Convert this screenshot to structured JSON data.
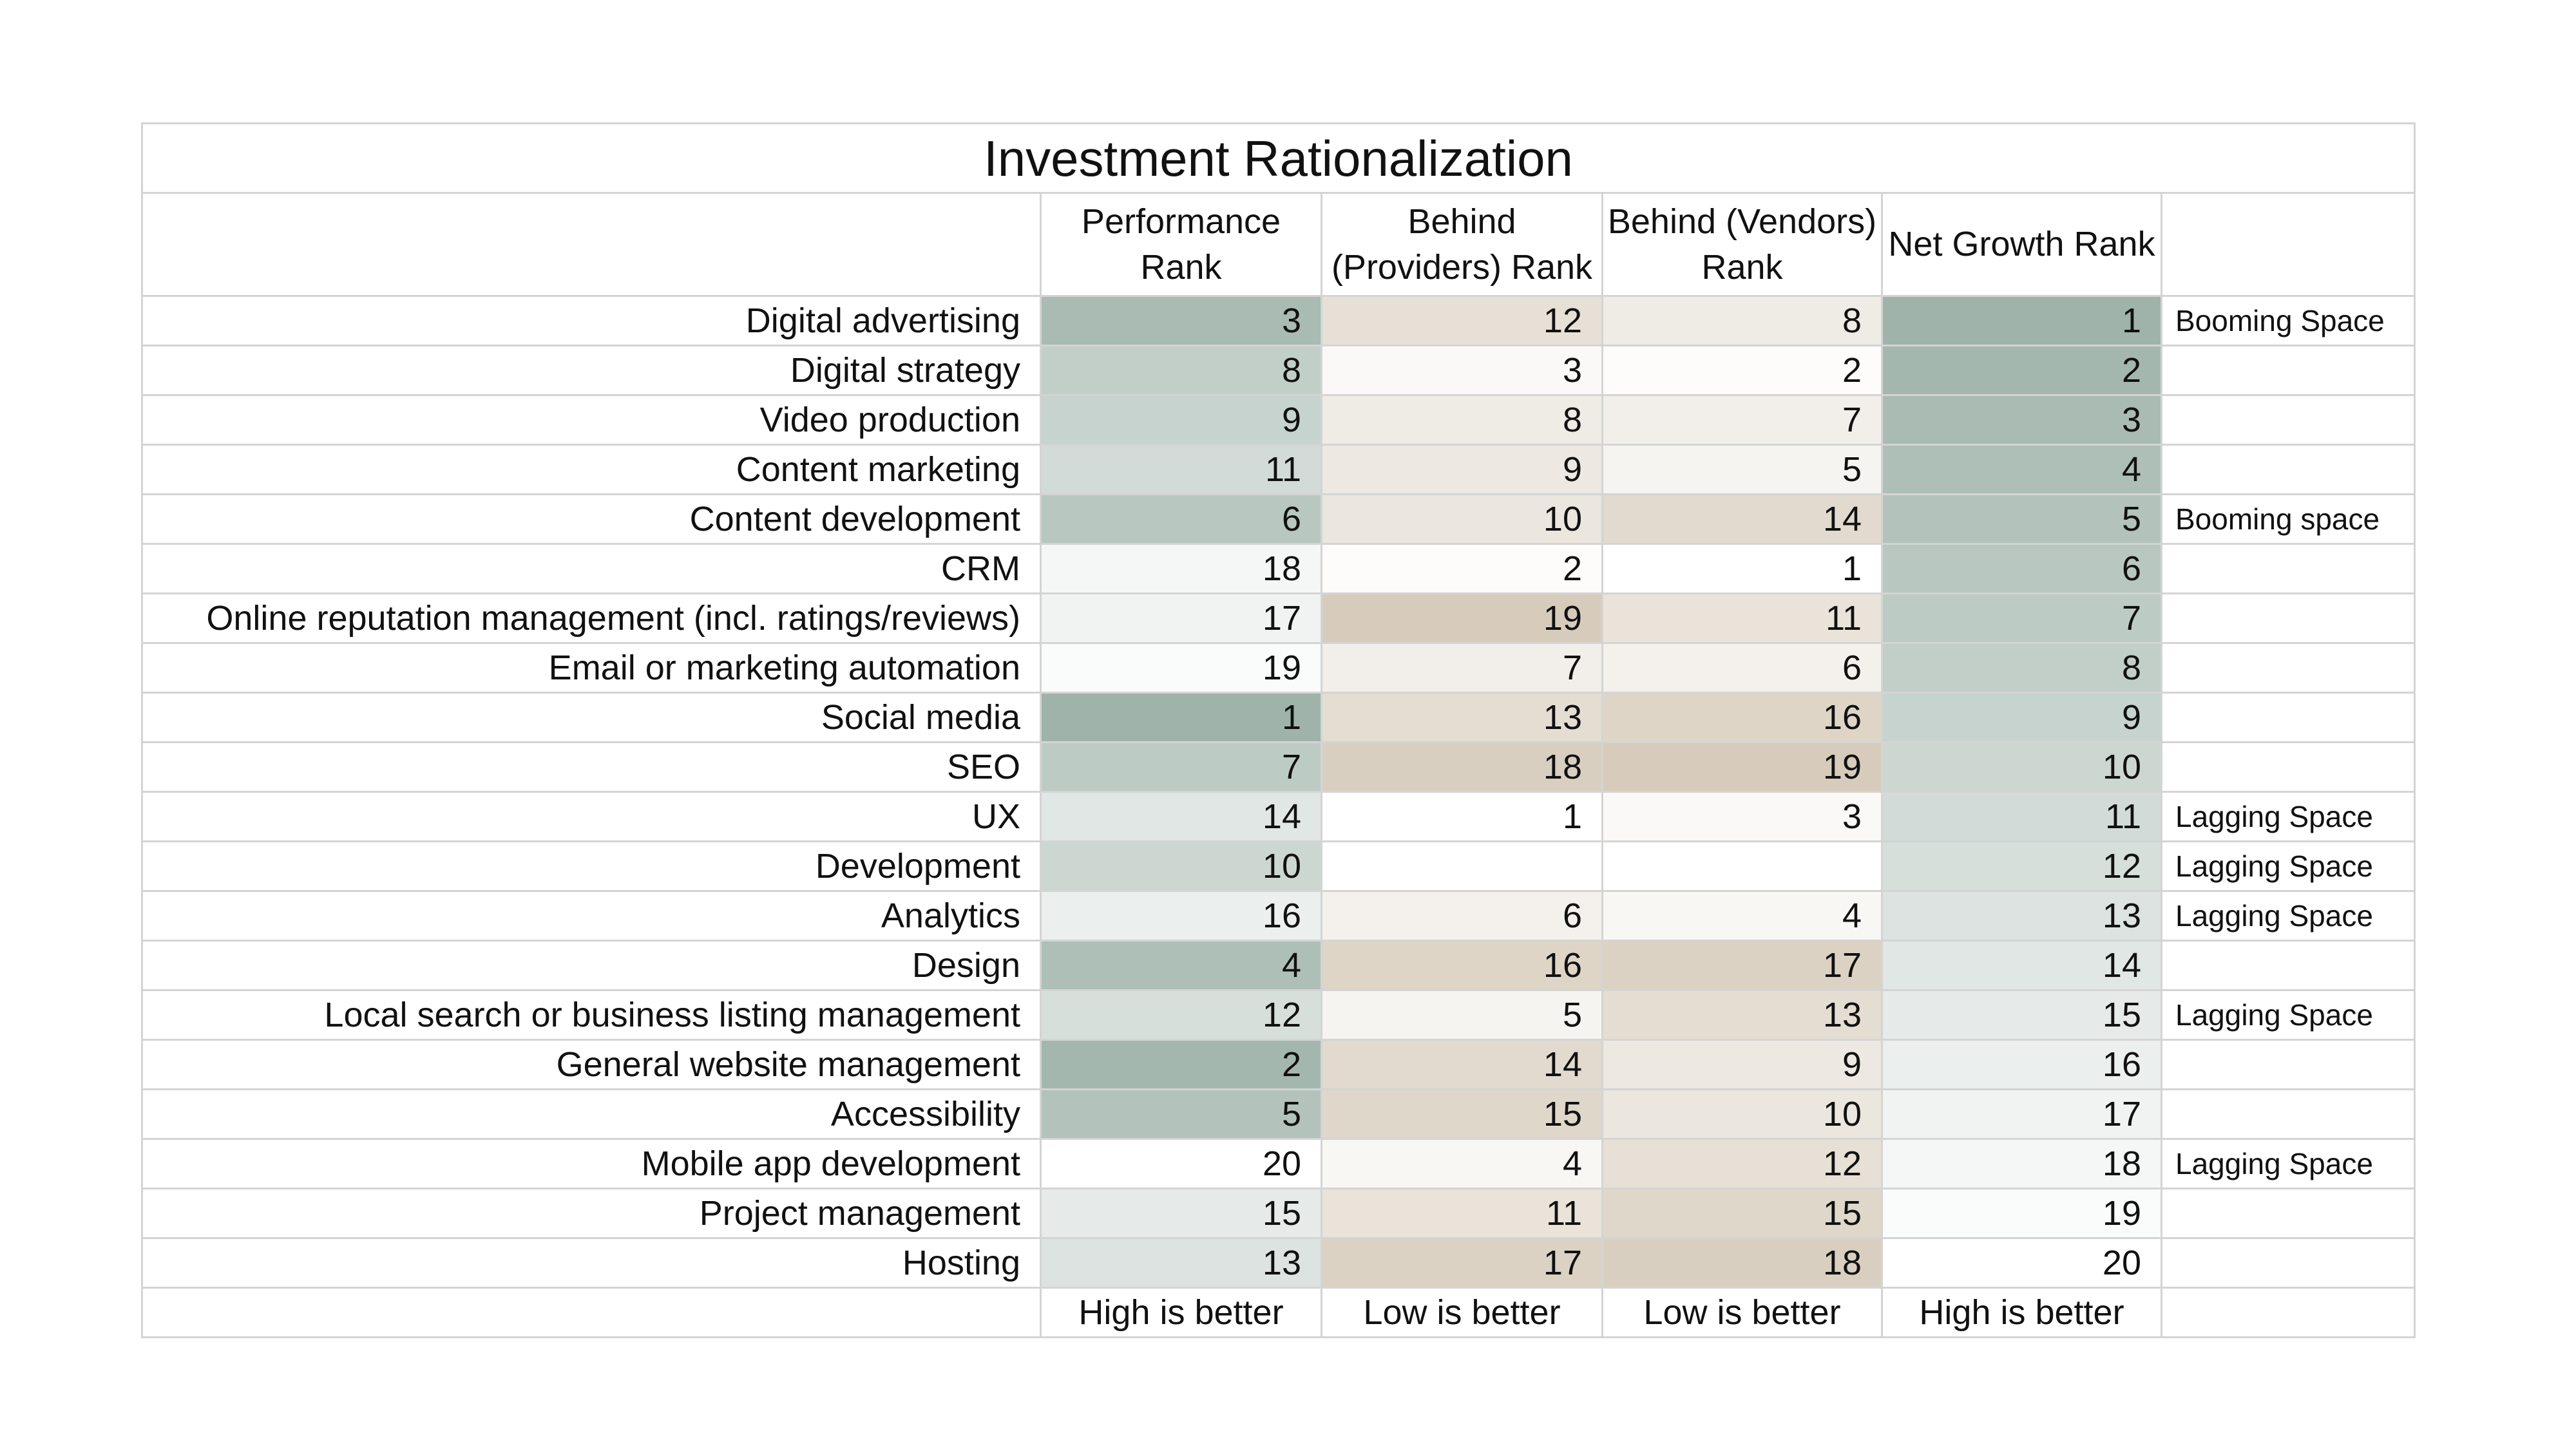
{
  "title": "Investment Rationalization",
  "headers": {
    "performance": "Performance Rank",
    "providers": "Behind (Providers) Rank",
    "vendors": "Behind (Vendors) Rank",
    "net_growth": "Net Growth Rank"
  },
  "colors": {
    "green_scale_best": "#9fb3aa",
    "beige_scale_worst": "#d7ccbc",
    "grid": "#d4d4d4"
  },
  "rows": [
    {
      "name": "Digital advertising",
      "performance": "3",
      "providers": "12",
      "vendors": "8",
      "net_growth": "1",
      "note": "Booming Space"
    },
    {
      "name": "Digital strategy",
      "performance": "8",
      "providers": "3",
      "vendors": "2",
      "net_growth": "2",
      "note": ""
    },
    {
      "name": "Video production",
      "performance": "9",
      "providers": "8",
      "vendors": "7",
      "net_growth": "3",
      "note": ""
    },
    {
      "name": "Content marketing",
      "performance": "11",
      "providers": "9",
      "vendors": "5",
      "net_growth": "4",
      "note": ""
    },
    {
      "name": "Content development",
      "performance": "6",
      "providers": "10",
      "vendors": "14",
      "net_growth": "5",
      "note": "Booming space"
    },
    {
      "name": "CRM",
      "performance": "18",
      "providers": "2",
      "vendors": "1",
      "net_growth": "6",
      "note": ""
    },
    {
      "name": "Online reputation management (incl. ratings/reviews)",
      "performance": "17",
      "providers": "19",
      "vendors": "11",
      "net_growth": "7",
      "note": ""
    },
    {
      "name": "Email or marketing automation",
      "performance": "19",
      "providers": "7",
      "vendors": "6",
      "net_growth": "8",
      "note": ""
    },
    {
      "name": "Social media",
      "performance": "1",
      "providers": "13",
      "vendors": "16",
      "net_growth": "9",
      "note": ""
    },
    {
      "name": "SEO",
      "performance": "7",
      "providers": "18",
      "vendors": "19",
      "net_growth": "10",
      "note": ""
    },
    {
      "name": "UX",
      "performance": "14",
      "providers": "1",
      "vendors": "3",
      "net_growth": "11",
      "note": "Lagging Space"
    },
    {
      "name": "Development",
      "performance": "10",
      "providers": "",
      "vendors": "",
      "net_growth": "12",
      "note": "Lagging Space"
    },
    {
      "name": "Analytics",
      "performance": "16",
      "providers": "6",
      "vendors": "4",
      "net_growth": "13",
      "note": "Lagging Space"
    },
    {
      "name": "Design",
      "performance": "4",
      "providers": "16",
      "vendors": "17",
      "net_growth": "14",
      "note": ""
    },
    {
      "name": "Local search or business listing management",
      "performance": "12",
      "providers": "5",
      "vendors": "13",
      "net_growth": "15",
      "note": "Lagging Space"
    },
    {
      "name": "General website management",
      "performance": "2",
      "providers": "14",
      "vendors": "9",
      "net_growth": "16",
      "note": ""
    },
    {
      "name": "Accessibility",
      "performance": "5",
      "providers": "15",
      "vendors": "10",
      "net_growth": "17",
      "note": ""
    },
    {
      "name": "Mobile app development",
      "performance": "20",
      "providers": "4",
      "vendors": "12",
      "net_growth": "18",
      "note": "Lagging Space"
    },
    {
      "name": "Project management",
      "performance": "15",
      "providers": "11",
      "vendors": "15",
      "net_growth": "19",
      "note": ""
    },
    {
      "name": "Hosting",
      "performance": "13",
      "providers": "17",
      "vendors": "18",
      "net_growth": "20",
      "note": ""
    }
  ],
  "footer": {
    "performance": "High is better",
    "providers": "Low is better",
    "vendors": "Low is better",
    "net_growth": "High is better"
  }
}
